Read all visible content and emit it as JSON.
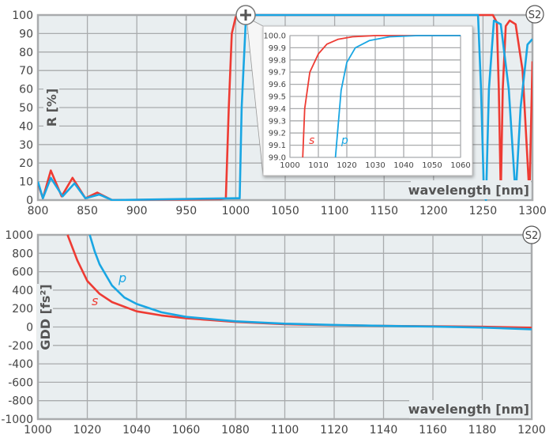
{
  "colors": {
    "s": "#ee3b33",
    "p": "#19a6e3",
    "bg": "#e9eef0",
    "grid": "#a9abad"
  },
  "chart_data": [
    {
      "type": "line",
      "title": "",
      "badge": "S2",
      "xlabel": "wavelength [nm]",
      "ylabel": "R [%]",
      "xlim": [
        800,
        1300
      ],
      "ylim": [
        0,
        100
      ],
      "xticks": [
        "800",
        "850",
        "900",
        "950",
        "1000",
        "1050",
        "1100",
        "1150",
        "1200",
        "1250",
        "1300"
      ],
      "yticks": [
        "0",
        "10",
        "20",
        "30",
        "40",
        "50",
        "60",
        "70",
        "80",
        "90",
        "100"
      ],
      "zoom_icon": "plus-magnifier-icon",
      "series": [
        {
          "name": "s",
          "points": [
            [
              800,
              9
            ],
            [
              805,
              1
            ],
            [
              813,
              16
            ],
            [
              824,
              2
            ],
            [
              835,
              12
            ],
            [
              848,
              1
            ],
            [
              860,
              4
            ],
            [
              875,
              0
            ],
            [
              985,
              0.5
            ],
            [
              990,
              1
            ],
            [
              993,
              50
            ],
            [
              996,
              90
            ],
            [
              1000,
              99
            ],
            [
              1005,
              100
            ],
            [
              1260,
              100
            ],
            [
              1264,
              96
            ],
            [
              1266,
              60
            ],
            [
              1268,
              3
            ],
            [
              1270,
              60
            ],
            [
              1273,
              94
            ],
            [
              1277,
              97
            ],
            [
              1283,
              95
            ],
            [
              1290,
              70
            ],
            [
              1297,
              2
            ],
            [
              1300,
              75
            ]
          ]
        },
        {
          "name": "p",
          "points": [
            [
              800,
              10
            ],
            [
              805,
              1
            ],
            [
              813,
              12
            ],
            [
              825,
              2
            ],
            [
              837,
              9
            ],
            [
              848,
              1
            ],
            [
              862,
              3
            ],
            [
              875,
              0
            ],
            [
              1000,
              1
            ],
            [
              1004,
              1
            ],
            [
              1006,
              50
            ],
            [
              1010,
              95
            ],
            [
              1013,
              100
            ],
            [
              1245,
              100
            ],
            [
              1248,
              60
            ],
            [
              1251,
              2
            ],
            [
              1253,
              0
            ],
            [
              1256,
              60
            ],
            [
              1261,
              97
            ],
            [
              1268,
              95
            ],
            [
              1276,
              60
            ],
            [
              1283,
              2
            ],
            [
              1288,
              50
            ],
            [
              1295,
              84
            ],
            [
              1300,
              87
            ]
          ]
        }
      ],
      "inset": {
        "xlim": [
          1000,
          1060
        ],
        "ylim": [
          99.0,
          100.0
        ],
        "xticks": [
          "1000",
          "1010",
          "1020",
          "1030",
          "1040",
          "1050",
          "1060"
        ],
        "yticks": [
          "99.0",
          "99.1",
          "99.2",
          "99.3",
          "99.4",
          "99.5",
          "99.6",
          "99.7",
          "99.8",
          "99.9",
          "100.0"
        ],
        "series": [
          {
            "name": "s",
            "label": "s",
            "points": [
              [
                1004.5,
                99.0
              ],
              [
                1005.2,
                99.4
              ],
              [
                1007,
                99.7
              ],
              [
                1010,
                99.85
              ],
              [
                1013,
                99.93
              ],
              [
                1017,
                99.97
              ],
              [
                1022,
                99.99
              ],
              [
                1030,
                100
              ],
              [
                1060,
                100
              ]
            ]
          },
          {
            "name": "p",
            "label": "p",
            "points": [
              [
                1016,
                99.0
              ],
              [
                1018,
                99.55
              ],
              [
                1020,
                99.78
              ],
              [
                1023,
                99.9
              ],
              [
                1028,
                99.96
              ],
              [
                1035,
                99.99
              ],
              [
                1045,
                100
              ],
              [
                1060,
                100
              ]
            ]
          }
        ]
      }
    },
    {
      "type": "line",
      "badge": "S2",
      "xlabel": "wavelength [nm]",
      "ylabel": "GDD [fs²]",
      "xlim": [
        1000,
        1200
      ],
      "ylim": [
        -1000,
        1000
      ],
      "xticks": [
        "1000",
        "1020",
        "1040",
        "1060",
        "1080",
        "1100",
        "1120",
        "1140",
        "1160",
        "1180",
        "1200"
      ],
      "yticks": [
        "-1000",
        "-800",
        "-600",
        "-400",
        "-200",
        "0",
        "200",
        "400",
        "600",
        "800",
        "1000"
      ],
      "series": [
        {
          "name": "s",
          "label": "s",
          "points": [
            [
              1012,
              1000
            ],
            [
              1016,
              720
            ],
            [
              1020,
              500
            ],
            [
              1025,
              360
            ],
            [
              1030,
              270
            ],
            [
              1040,
              170
            ],
            [
              1050,
              125
            ],
            [
              1060,
              95
            ],
            [
              1080,
              55
            ],
            [
              1100,
              30
            ],
            [
              1120,
              20
            ],
            [
              1140,
              12
            ],
            [
              1160,
              8
            ],
            [
              1180,
              3
            ],
            [
              1200,
              -8
            ]
          ]
        },
        {
          "name": "p",
          "label": "p",
          "points": [
            [
              1021,
              1000
            ],
            [
              1023,
              820
            ],
            [
              1025,
              680
            ],
            [
              1030,
              450
            ],
            [
              1035,
              320
            ],
            [
              1040,
              250
            ],
            [
              1050,
              160
            ],
            [
              1060,
              110
            ],
            [
              1080,
              62
            ],
            [
              1100,
              36
            ],
            [
              1120,
              22
            ],
            [
              1140,
              12
            ],
            [
              1160,
              5
            ],
            [
              1180,
              -6
            ],
            [
              1200,
              -25
            ]
          ]
        }
      ]
    }
  ]
}
